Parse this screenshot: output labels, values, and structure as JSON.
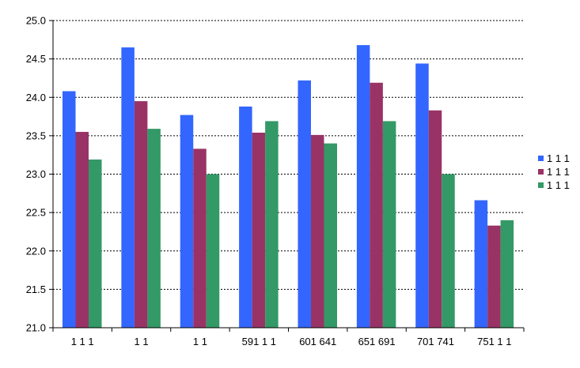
{
  "chart_data": {
    "type": "bar",
    "title": "",
    "xlabel": "",
    "ylabel": "",
    "ylim": [
      21.0,
      25.0
    ],
    "yticks": [
      "21.0",
      "21.5",
      "22.0",
      "22.5",
      "23.0",
      "23.5",
      "24.0",
      "24.5",
      "25.0"
    ],
    "grid": "horizontal dashed",
    "legend_position": "right",
    "categories": [
      "1 1 1",
      "1 1",
      "1 1",
      "591 1 1",
      "601 641",
      "651 691",
      "701 741",
      "751 1 1"
    ],
    "series": [
      {
        "name": "1 1 1",
        "color": "#3366ff",
        "values": [
          24.08,
          24.65,
          23.77,
          23.88,
          24.22,
          24.68,
          24.44,
          22.66
        ]
      },
      {
        "name": "1 1 1",
        "color": "#993366",
        "values": [
          23.55,
          23.95,
          23.33,
          23.54,
          23.51,
          24.19,
          23.83,
          22.33
        ]
      },
      {
        "name": "1 1 1",
        "color": "#339966",
        "values": [
          23.19,
          23.59,
          23.0,
          23.69,
          23.4,
          23.69,
          23.0,
          22.4
        ]
      }
    ]
  }
}
